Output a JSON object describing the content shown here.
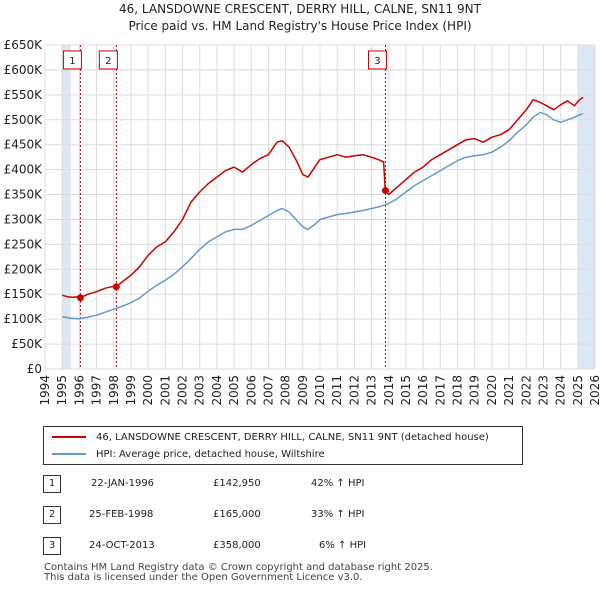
{
  "title_line1": "46, LANSDOWNE CRESCENT, DERRY HILL, CALNE, SN11 9NT",
  "title_line2": "Price paid vs. HM Land Registry's House Price Index (HPI)",
  "colors": {
    "property": "#cc0000",
    "hpi": "#6699cc",
    "shade": "#dde6f3",
    "marker_line": "#cc0000"
  },
  "chart_data": {
    "type": "line",
    "xlim": [
      1994,
      2026
    ],
    "ylim": [
      0,
      650000
    ],
    "y_ticks": [
      0,
      50000,
      100000,
      150000,
      200000,
      250000,
      300000,
      350000,
      400000,
      450000,
      500000,
      550000,
      600000,
      650000
    ],
    "y_tick_labels": [
      "£0",
      "£50K",
      "£100K",
      "£150K",
      "£200K",
      "£250K",
      "£300K",
      "£350K",
      "£400K",
      "£450K",
      "£500K",
      "£550K",
      "£600K",
      "£650K"
    ],
    "x_ticks": [
      1994,
      1995,
      1996,
      1997,
      1998,
      1999,
      2000,
      2001,
      2002,
      2003,
      2004,
      2005,
      2006,
      2007,
      2008,
      2009,
      2010,
      2011,
      2012,
      2013,
      2014,
      2015,
      2016,
      2017,
      2018,
      2019,
      2020,
      2021,
      2022,
      2023,
      2024,
      2025,
      2026
    ],
    "x_tick_labels": [
      "1994",
      "1995",
      "1996",
      "1997",
      "1998",
      "1999",
      "2000",
      "2001",
      "2002",
      "2003",
      "2004",
      "2005",
      "2006",
      "2007",
      "2008",
      "2009",
      "2010",
      "2011",
      "2012",
      "2013",
      "2014",
      "2015",
      "2016",
      "2017",
      "2018",
      "2019",
      "2020",
      "2021",
      "2022",
      "2023",
      "2024",
      "2025",
      "2026"
    ],
    "shaded_ranges": [
      [
        1995.0,
        1995.5
      ],
      [
        2025.0,
        2026.0
      ]
    ],
    "series": [
      {
        "name": "46, LANSDOWNE CRESCENT, DERRY HILL, CALNE, SN11 9NT (detached house)",
        "color": "#cc0000",
        "x": [
          1995.0,
          1995.3,
          1995.6,
          1995.9,
          1996.06,
          1996.5,
          1997.0,
          1997.5,
          1998.0,
          1998.15,
          1998.6,
          1999.0,
          1999.5,
          2000.0,
          2000.5,
          2001.0,
          2001.5,
          2002.0,
          2002.5,
          2003.0,
          2003.5,
          2004.0,
          2004.5,
          2005.0,
          2005.5,
          2006.0,
          2006.5,
          2007.0,
          2007.5,
          2007.8,
          2008.2,
          2008.6,
          2009.0,
          2009.3,
          2009.7,
          2010.0,
          2010.5,
          2011.0,
          2011.5,
          2012.0,
          2012.5,
          2013.0,
          2013.4,
          2013.7,
          2013.8,
          2014.0,
          2014.5,
          2015.0,
          2015.5,
          2016.0,
          2016.5,
          2017.0,
          2017.5,
          2018.0,
          2018.5,
          2019.0,
          2019.5,
          2020.0,
          2020.5,
          2021.0,
          2021.5,
          2022.0,
          2022.4,
          2022.8,
          2023.2,
          2023.6,
          2024.0,
          2024.4,
          2024.8,
          2025.1,
          2025.3
        ],
        "values": [
          148000,
          145000,
          144000,
          145000,
          142950,
          150000,
          155000,
          162000,
          166000,
          165000,
          178000,
          188000,
          205000,
          228000,
          245000,
          255000,
          275000,
          300000,
          335000,
          355000,
          372000,
          385000,
          398000,
          405000,
          395000,
          410000,
          422000,
          430000,
          455000,
          458000,
          445000,
          420000,
          390000,
          385000,
          405000,
          420000,
          425000,
          430000,
          425000,
          428000,
          430000,
          425000,
          420000,
          415000,
          358000,
          350000,
          365000,
          380000,
          395000,
          405000,
          420000,
          430000,
          440000,
          450000,
          460000,
          462000,
          455000,
          465000,
          470000,
          480000,
          500000,
          520000,
          540000,
          535000,
          528000,
          520000,
          530000,
          538000,
          528000,
          540000,
          545000
        ]
      },
      {
        "name": "HPI: Average price, detached house, Wiltshire",
        "color": "#6699cc",
        "x": [
          1995.0,
          1995.5,
          1996.0,
          1996.5,
          1997.0,
          1997.5,
          1998.0,
          1998.5,
          1999.0,
          1999.5,
          2000.0,
          2000.5,
          2001.0,
          2001.5,
          2002.0,
          2002.5,
          2003.0,
          2003.5,
          2004.0,
          2004.5,
          2005.0,
          2005.5,
          2006.0,
          2006.5,
          2007.0,
          2007.5,
          2007.8,
          2008.2,
          2008.6,
          2009.0,
          2009.3,
          2009.7,
          2010.0,
          2010.5,
          2011.0,
          2011.5,
          2012.0,
          2012.5,
          2013.0,
          2013.5,
          2014.0,
          2014.5,
          2015.0,
          2015.5,
          2016.0,
          2016.5,
          2017.0,
          2017.5,
          2018.0,
          2018.5,
          2019.0,
          2019.5,
          2020.0,
          2020.5,
          2021.0,
          2021.5,
          2022.0,
          2022.4,
          2022.8,
          2023.2,
          2023.6,
          2024.0,
          2024.4,
          2024.8,
          2025.1,
          2025.3
        ],
        "values": [
          105000,
          102000,
          101000,
          104000,
          108000,
          114000,
          120000,
          126000,
          133000,
          142000,
          156000,
          168000,
          178000,
          190000,
          205000,
          222000,
          240000,
          255000,
          265000,
          275000,
          280000,
          280000,
          288000,
          298000,
          308000,
          318000,
          322000,
          315000,
          300000,
          285000,
          280000,
          290000,
          300000,
          305000,
          310000,
          312000,
          315000,
          318000,
          322000,
          326000,
          332000,
          342000,
          355000,
          368000,
          378000,
          388000,
          398000,
          408000,
          418000,
          425000,
          428000,
          430000,
          435000,
          445000,
          458000,
          475000,
          490000,
          505000,
          515000,
          510000,
          500000,
          495000,
          500000,
          505000,
          510000,
          512000
        ]
      }
    ],
    "sales": [
      {
        "label": "1",
        "x": 1996.06,
        "value": 142950
      },
      {
        "label": "2",
        "x": 1998.15,
        "value": 165000
      },
      {
        "label": "3",
        "x": 2013.81,
        "value": 358000
      }
    ]
  },
  "legend": {
    "property": "46, LANSDOWNE CRESCENT, DERRY HILL, CALNE, SN11 9NT (detached house)",
    "hpi": "HPI: Average price, detached house, Wiltshire"
  },
  "transactions": [
    {
      "num": "1",
      "date": "22-JAN-1996",
      "price": "£142,950",
      "change": "42% ↑ HPI"
    },
    {
      "num": "2",
      "date": "25-FEB-1998",
      "price": "£165,000",
      "change": "33% ↑ HPI"
    },
    {
      "num": "3",
      "date": "24-OCT-2013",
      "price": "£358,000",
      "change": "6% ↑ HPI"
    }
  ],
  "footer_line1": "Contains HM Land Registry data © Crown copyright and database right 2025.",
  "footer_line2": "This data is licensed under the Open Government Licence v3.0."
}
